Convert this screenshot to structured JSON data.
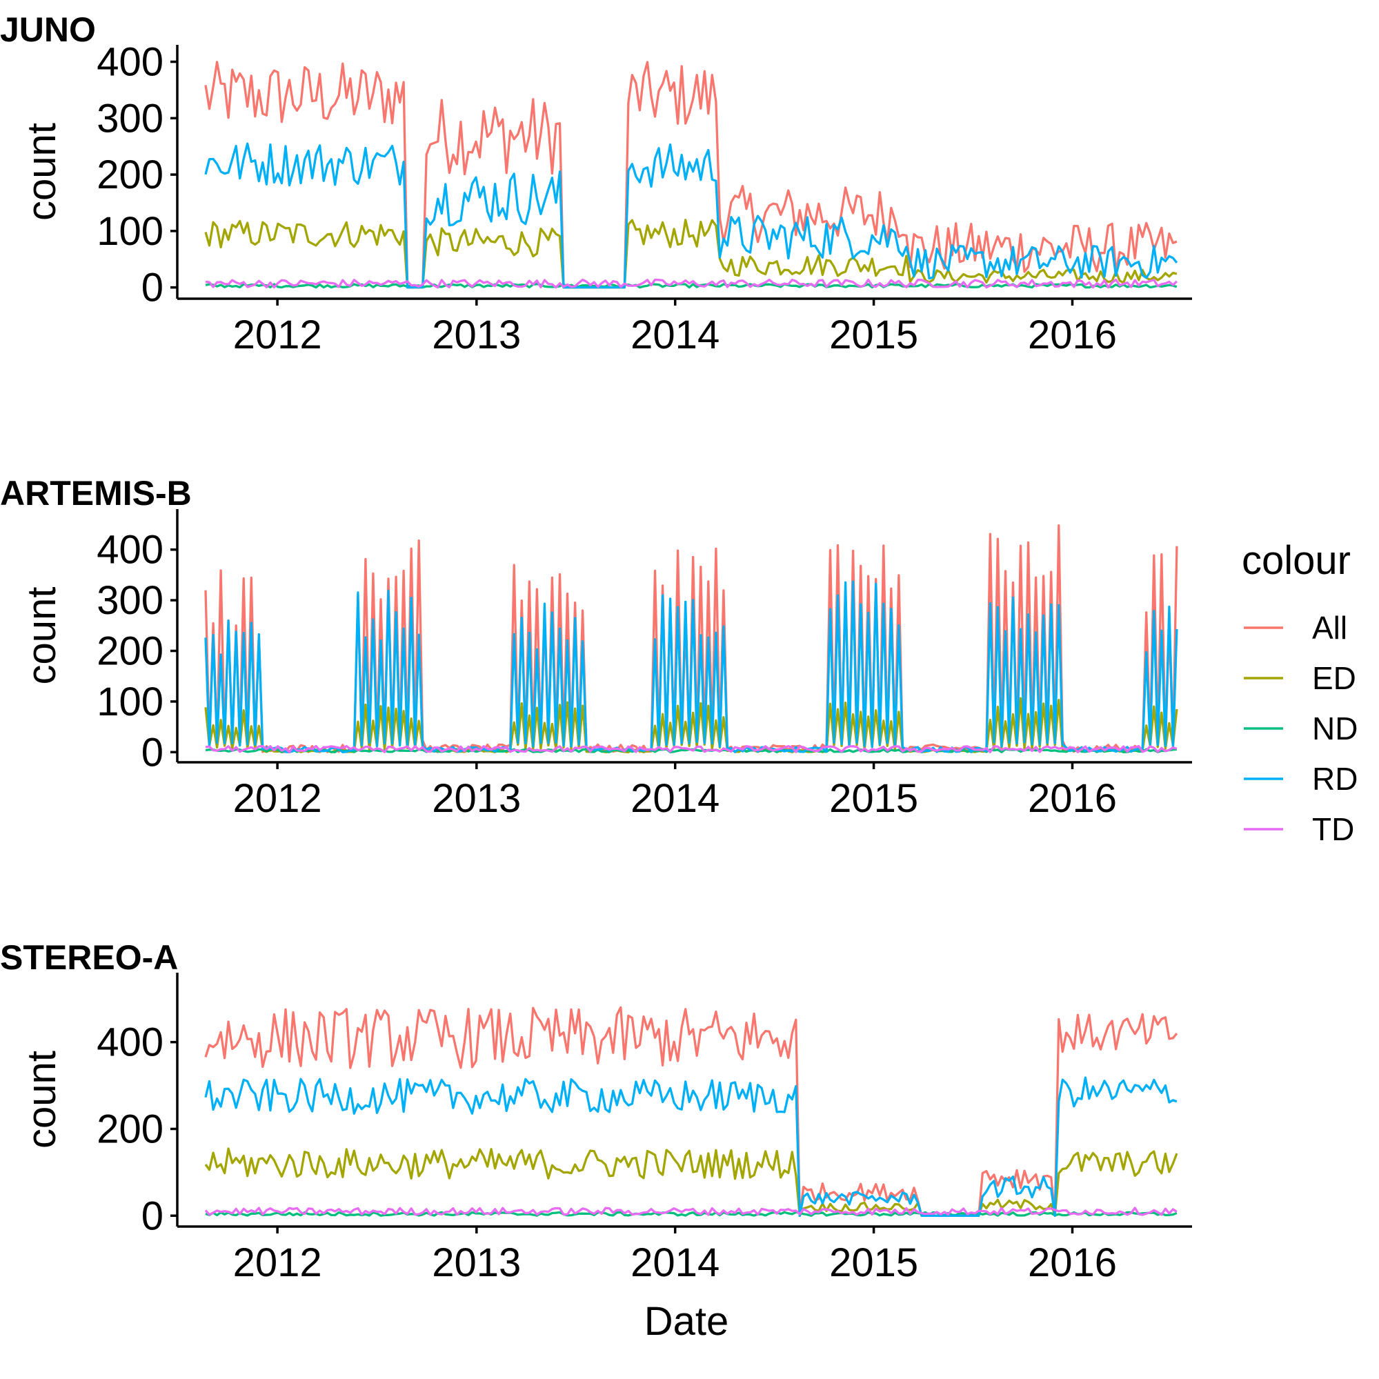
{
  "chart_data": [
    {
      "type": "line",
      "title": "JUNO",
      "xlabel": "",
      "ylabel": "count",
      "x_ticks": [
        "2012",
        "2013",
        "2014",
        "2015",
        "2016"
      ],
      "y_ticks": [
        0,
        100,
        200,
        300,
        400
      ],
      "ylim": [
        -20,
        430
      ],
      "xlim": [
        "2011-07-01",
        "2016-08-08"
      ],
      "x_start": "2011-08-22",
      "x_end": "2016-07-11",
      "series": [
        {
          "name": "All",
          "color": "#F8766D",
          "segments": [
            {
              "from": "2011-08-22",
              "to": "2012-08-20",
              "level": 340,
              "amp": 60
            },
            {
              "from": "2012-10-01",
              "to": "2013-06-03",
              "level": 270,
              "amp": 70
            },
            {
              "from": "2013-10-07",
              "to": "2014-03-17",
              "level": 340,
              "amp": 60
            },
            {
              "from": "2014-03-24",
              "to": "2015-03-02",
              "level": 130,
              "amp": 50
            },
            {
              "from": "2015-03-09",
              "to": "2016-07-11",
              "level": 70,
              "amp": 45
            }
          ]
        },
        {
          "name": "ED",
          "color": "#A3A500",
          "segments": [
            {
              "from": "2011-08-22",
              "to": "2012-08-20",
              "level": 95,
              "amp": 25
            },
            {
              "from": "2012-10-01",
              "to": "2013-06-03",
              "level": 80,
              "amp": 25
            },
            {
              "from": "2013-10-07",
              "to": "2014-03-17",
              "level": 95,
              "amp": 25
            },
            {
              "from": "2014-03-24",
              "to": "2015-03-02",
              "level": 40,
              "amp": 20
            },
            {
              "from": "2015-03-09",
              "to": "2016-07-11",
              "level": 20,
              "amp": 12
            }
          ]
        },
        {
          "name": "ND",
          "color": "#00BF7D",
          "segments": [
            {
              "from": "2011-08-22",
              "to": "2016-07-11",
              "level": 3,
              "amp": 3
            }
          ]
        },
        {
          "name": "RD",
          "color": "#00B0F6",
          "segments": [
            {
              "from": "2011-08-22",
              "to": "2012-08-20",
              "level": 220,
              "amp": 40
            },
            {
              "from": "2012-10-01",
              "to": "2013-06-03",
              "level": 160,
              "amp": 50
            },
            {
              "from": "2013-10-07",
              "to": "2014-03-17",
              "level": 215,
              "amp": 40
            },
            {
              "from": "2014-03-24",
              "to": "2015-03-02",
              "level": 90,
              "amp": 40
            },
            {
              "from": "2015-03-09",
              "to": "2016-07-11",
              "level": 45,
              "amp": 30
            }
          ]
        },
        {
          "name": "TD",
          "color": "#E76BF3",
          "segments": [
            {
              "from": "2011-08-22",
              "to": "2016-07-11",
              "level": 7,
              "amp": 7
            }
          ]
        }
      ]
    },
    {
      "type": "line",
      "title": "ARTEMIS-B",
      "xlabel": "",
      "ylabel": "count",
      "x_ticks": [
        "2012",
        "2013",
        "2014",
        "2015",
        "2016"
      ],
      "y_ticks": [
        0,
        100,
        200,
        300,
        400
      ],
      "ylim": [
        -20,
        480
      ],
      "xlim": [
        "2011-07-01",
        "2016-08-08"
      ],
      "x_start": "2011-08-22",
      "x_end": "2016-07-11",
      "series": [
        {
          "name": "All",
          "color": "#F8766D",
          "segments": [
            {
              "from": "2011-08-22",
              "to": "2011-11-28",
              "level": 300,
              "amp": 80,
              "pulsed": true
            },
            {
              "from": "2012-05-28",
              "to": "2012-09-24",
              "level": 360,
              "amp": 60,
              "pulsed": true
            },
            {
              "from": "2013-03-11",
              "to": "2013-07-15",
              "level": 330,
              "amp": 80,
              "pulsed": true
            },
            {
              "from": "2013-11-25",
              "to": "2014-03-31",
              "level": 340,
              "amp": 80,
              "pulsed": true
            },
            {
              "from": "2014-10-13",
              "to": "2015-02-16",
              "level": 370,
              "amp": 60,
              "pulsed": true
            },
            {
              "from": "2015-08-03",
              "to": "2015-12-14",
              "level": 380,
              "amp": 70,
              "pulsed": true
            },
            {
              "from": "2016-05-16",
              "to": "2016-07-11",
              "level": 330,
              "amp": 80,
              "pulsed": true
            }
          ],
          "base": 15
        },
        {
          "name": "ED",
          "color": "#A3A500",
          "segments": [
            {
              "from": "2011-08-22",
              "to": "2011-11-28",
              "level": 70,
              "amp": 25,
              "pulsed": true
            },
            {
              "from": "2012-05-28",
              "to": "2012-09-24",
              "level": 75,
              "amp": 20,
              "pulsed": true
            },
            {
              "from": "2013-03-11",
              "to": "2013-07-15",
              "level": 75,
              "amp": 25,
              "pulsed": true
            },
            {
              "from": "2013-11-25",
              "to": "2014-03-31",
              "level": 75,
              "amp": 25,
              "pulsed": true
            },
            {
              "from": "2014-10-13",
              "to": "2015-02-16",
              "level": 80,
              "amp": 20,
              "pulsed": true
            },
            {
              "from": "2015-08-03",
              "to": "2015-12-14",
              "level": 85,
              "amp": 25,
              "pulsed": true
            },
            {
              "from": "2016-05-16",
              "to": "2016-07-11",
              "level": 75,
              "amp": 25,
              "pulsed": true
            }
          ],
          "base": 5
        },
        {
          "name": "ND",
          "color": "#00BF7D",
          "segments": [
            {
              "from": "2011-08-22",
              "to": "2016-07-11",
              "level": 3,
              "amp": 3
            }
          ]
        },
        {
          "name": "RD",
          "color": "#00B0F6",
          "segments": [
            {
              "from": "2011-08-22",
              "to": "2011-11-28",
              "level": 220,
              "amp": 40,
              "pulsed": true
            },
            {
              "from": "2012-05-28",
              "to": "2012-09-24",
              "level": 270,
              "amp": 50,
              "pulsed": true
            },
            {
              "from": "2013-03-11",
              "to": "2013-07-15",
              "level": 250,
              "amp": 50,
              "pulsed": true
            },
            {
              "from": "2013-11-25",
              "to": "2014-03-31",
              "level": 270,
              "amp": 50,
              "pulsed": true
            },
            {
              "from": "2014-10-13",
              "to": "2015-02-16",
              "level": 290,
              "amp": 50,
              "pulsed": true
            },
            {
              "from": "2015-08-03",
              "to": "2015-12-14",
              "level": 270,
              "amp": 40,
              "pulsed": true
            },
            {
              "from": "2016-05-16",
              "to": "2016-07-11",
              "level": 240,
              "amp": 50,
              "pulsed": true
            }
          ],
          "base": 10
        },
        {
          "name": "TD",
          "color": "#E76BF3",
          "segments": [
            {
              "from": "2011-08-22",
              "to": "2016-07-11",
              "level": 6,
              "amp": 6
            }
          ]
        }
      ]
    },
    {
      "type": "line",
      "title": "STEREO-A",
      "xlabel": "Date",
      "ylabel": "count",
      "x_ticks": [
        "2012",
        "2013",
        "2014",
        "2015",
        "2016"
      ],
      "y_ticks": [
        0,
        200,
        400
      ],
      "ylim": [
        -25,
        560
      ],
      "xlim": [
        "2011-07-01",
        "2016-08-08"
      ],
      "x_start": "2011-08-22",
      "x_end": "2016-07-11",
      "series": [
        {
          "name": "All",
          "color": "#F8766D",
          "segments": [
            {
              "from": "2011-08-22",
              "to": "2014-08-11",
              "level": 410,
              "amp": 70
            },
            {
              "from": "2014-08-25",
              "to": "2015-03-23",
              "level": 55,
              "amp": 20
            },
            {
              "from": "2015-07-20",
              "to": "2015-11-23",
              "level": 90,
              "amp": 30
            },
            {
              "from": "2015-12-07",
              "to": "2016-07-11",
              "level": 420,
              "amp": 45
            }
          ]
        },
        {
          "name": "ED",
          "color": "#A3A500",
          "segments": [
            {
              "from": "2011-08-22",
              "to": "2014-08-11",
              "level": 120,
              "amp": 35
            },
            {
              "from": "2014-08-25",
              "to": "2015-03-23",
              "level": 20,
              "amp": 10
            },
            {
              "from": "2015-07-20",
              "to": "2015-11-23",
              "level": 25,
              "amp": 12
            },
            {
              "from": "2015-12-07",
              "to": "2016-07-11",
              "level": 120,
              "amp": 30
            }
          ]
        },
        {
          "name": "ND",
          "color": "#00BF7D",
          "segments": [
            {
              "from": "2011-08-22",
              "to": "2016-07-11",
              "level": 4,
              "amp": 4
            }
          ]
        },
        {
          "name": "RD",
          "color": "#00B0F6",
          "segments": [
            {
              "from": "2011-08-22",
              "to": "2014-08-11",
              "level": 275,
              "amp": 40
            },
            {
              "from": "2014-08-25",
              "to": "2015-03-23",
              "level": 40,
              "amp": 15
            },
            {
              "from": "2015-07-20",
              "to": "2015-11-23",
              "level": 65,
              "amp": 25
            },
            {
              "from": "2015-12-07",
              "to": "2016-07-11",
              "level": 285,
              "amp": 35
            }
          ]
        },
        {
          "name": "TD",
          "color": "#E76BF3",
          "segments": [
            {
              "from": "2011-08-22",
              "to": "2016-07-11",
              "level": 10,
              "amp": 8
            }
          ]
        }
      ]
    }
  ],
  "legend": {
    "title": "colour",
    "entries": [
      {
        "label": "All",
        "color": "#F8766D"
      },
      {
        "label": "ED",
        "color": "#A3A500"
      },
      {
        "label": "ND",
        "color": "#00BF7D"
      },
      {
        "label": "RD",
        "color": "#00B0F6"
      },
      {
        "label": "TD",
        "color": "#E76BF3"
      }
    ]
  }
}
